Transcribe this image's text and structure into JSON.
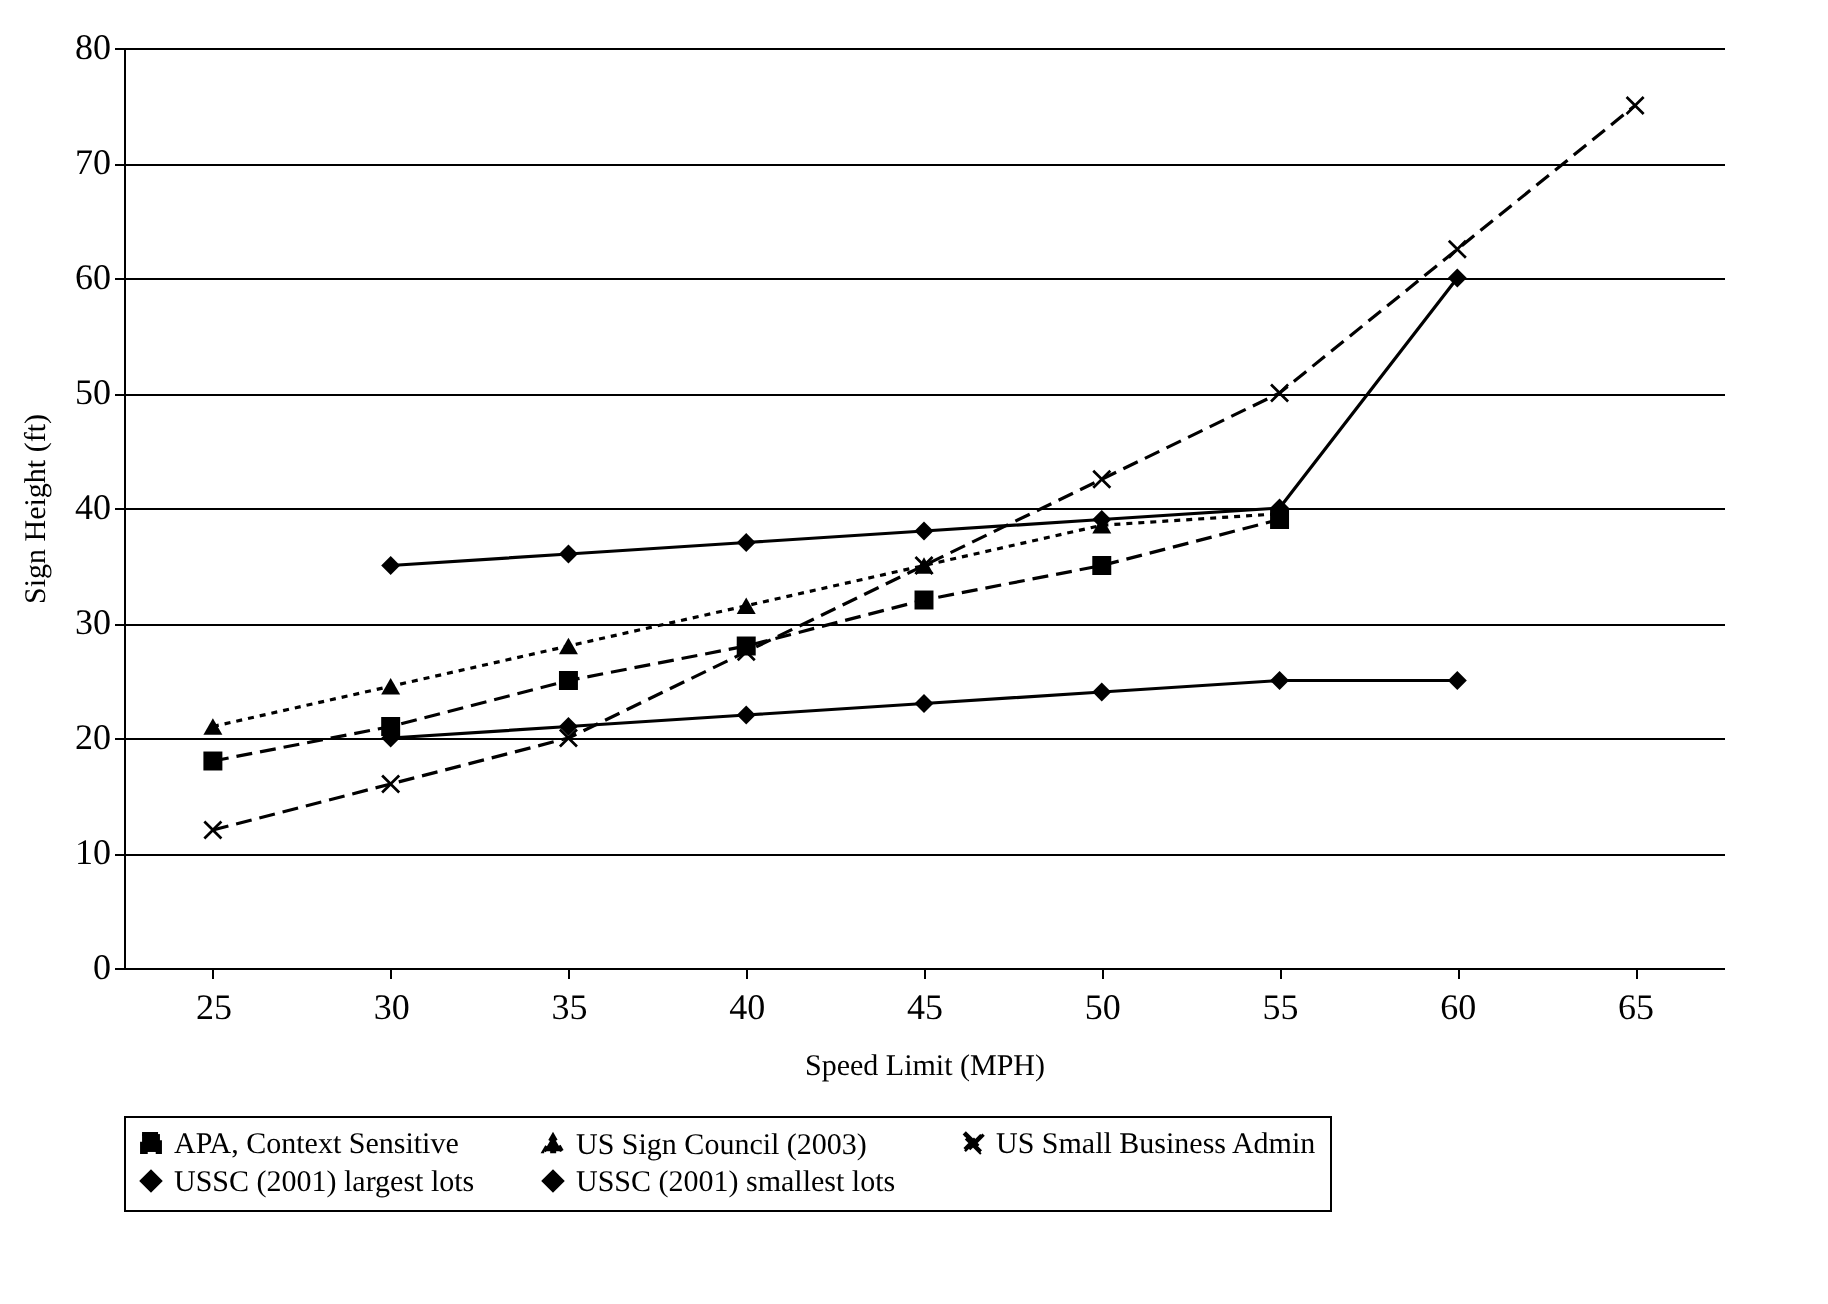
{
  "chart_data": {
    "type": "line",
    "xlabel": "Speed Limit (MPH)",
    "ylabel": "Sign Height (ft)",
    "categories": [
      "25",
      "30",
      "35",
      "40",
      "45",
      "50",
      "55",
      "60",
      "65"
    ],
    "series": [
      {
        "name": "APA, Context Sensitive",
        "color": "#000000",
        "marker": "square",
        "line_style": "dashed",
        "values": [
          18,
          21,
          25,
          28,
          32,
          35,
          39,
          null,
          null
        ]
      },
      {
        "name": "US Sign Council (2003)",
        "color": "#000000",
        "marker": "triangle",
        "line_style": "dotted",
        "values": [
          21,
          24.5,
          28,
          31.5,
          35,
          38.5,
          39.5,
          null,
          null
        ]
      },
      {
        "name": "US Small Business Admin",
        "color": "#000000",
        "marker": "cross",
        "line_style": "dashed",
        "values": [
          12,
          16,
          20,
          27.5,
          35,
          42.5,
          50,
          62.5,
          75
        ]
      },
      {
        "name": "USSC (2001) largest lots",
        "color": "#000000",
        "marker": "diamond",
        "line_style": "solid",
        "values": [
          null,
          35,
          36,
          37,
          38,
          39,
          40,
          60,
          null
        ]
      },
      {
        "name": "USSC (2001) smallest lots",
        "color": "#000000",
        "marker": "diamond",
        "line_style": "solid",
        "values": [
          null,
          20,
          21,
          22,
          23,
          24,
          25,
          25,
          null
        ]
      }
    ],
    "ylim": [
      0,
      80
    ],
    "yticks": [
      0,
      10,
      20,
      30,
      40,
      50,
      60,
      70,
      80
    ],
    "grid": "y",
    "legend": "bottom"
  }
}
